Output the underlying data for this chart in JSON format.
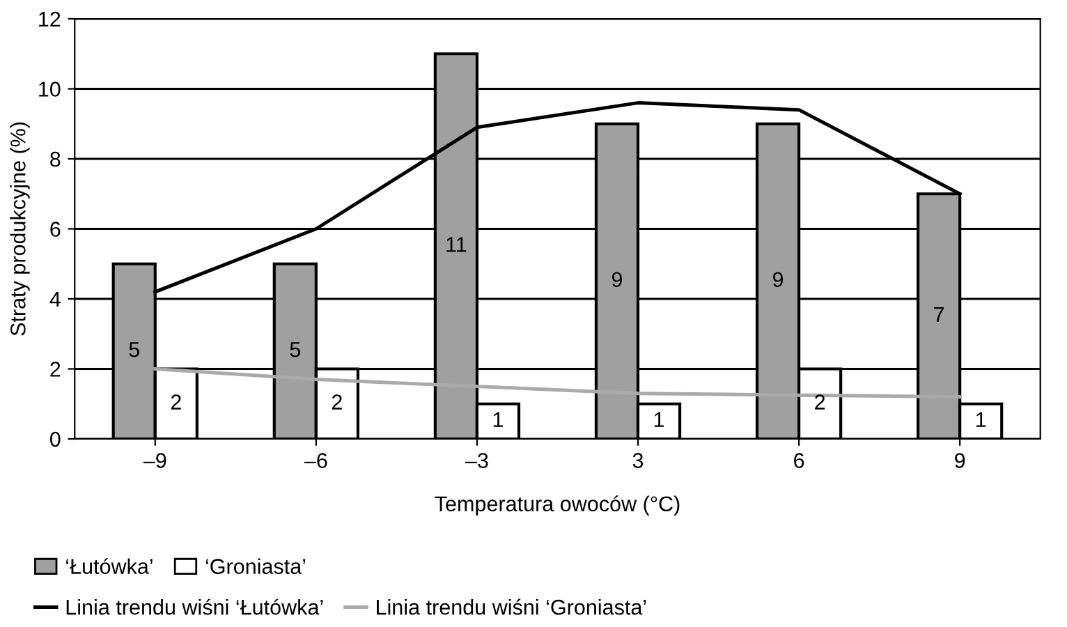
{
  "chart_data": {
    "type": "bar",
    "xlabel": "Temperatura owoców (°C)",
    "ylabel": "Straty produkcyjne (%)",
    "categories": [
      "–9",
      "–6",
      "–3",
      "3",
      "6",
      "9"
    ],
    "series": [
      {
        "name": "‘Łutówka’",
        "color": "#a0a0a0",
        "values": [
          5,
          5,
          11,
          9,
          9,
          7
        ],
        "value_labels": [
          "5",
          "5",
          "11",
          "9",
          "9",
          "7"
        ]
      },
      {
        "name": "‘Groniasta’",
        "color": "#ffffff",
        "values": [
          2,
          2,
          1,
          1,
          2,
          1
        ],
        "value_labels": [
          "2",
          "2",
          "1",
          "1",
          "2",
          "1"
        ]
      },
      {
        "name": "Linia trendu wiśni ‘Łutówka’",
        "type": "line",
        "color": "#000000",
        "values": [
          4.2,
          6.0,
          8.9,
          9.6,
          9.4,
          7.0
        ]
      },
      {
        "name": "Linia trendu wiśni ‘Groniasta’",
        "type": "line",
        "color": "#aaaaaa",
        "values": [
          2.0,
          1.7,
          1.5,
          1.3,
          1.25,
          1.2
        ]
      }
    ],
    "ylim": [
      0,
      12
    ],
    "yticks": [
      0,
      2,
      4,
      6,
      8,
      10,
      12
    ],
    "grid": "y",
    "legend": "bottom"
  }
}
